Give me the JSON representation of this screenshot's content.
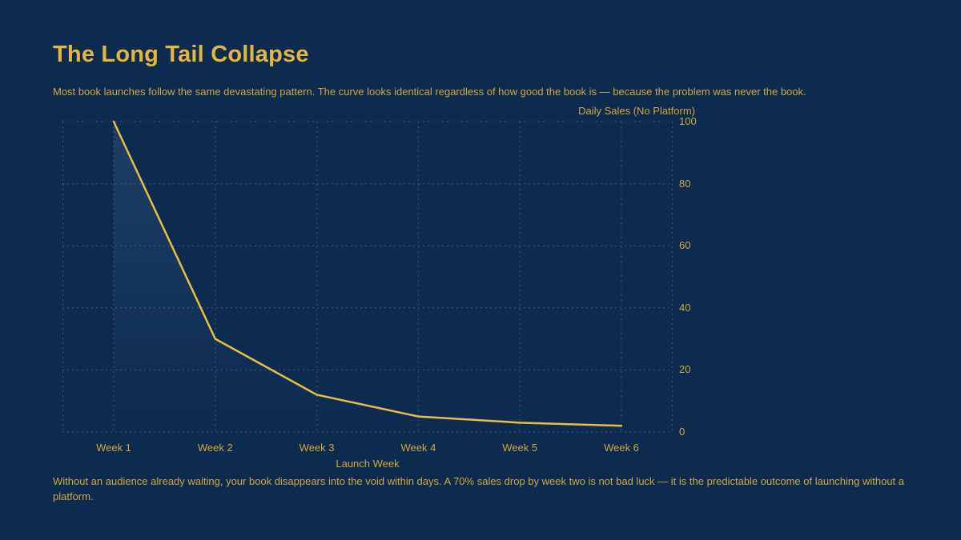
{
  "page": {
    "title": "The Long Tail Collapse",
    "subtitle": "Most book launches follow the same devastating pattern. The curve looks identical regardless of how good the book is — because the problem was never the book.",
    "footer": "Without an audience already waiting, your book disappears into the void within days. A 70% sales drop by week two is not bad luck — it is the predictable outcome of launching without a platform."
  },
  "chart_data": {
    "type": "line",
    "title": "The Long Tail Collapse",
    "categories": [
      "Week 1",
      "Week 2",
      "Week 3",
      "Week 4",
      "Week 5",
      "Week 6"
    ],
    "values": [
      100,
      30,
      12,
      5,
      3,
      2
    ],
    "xlabel": "Launch Week",
    "ylabel": "Daily Sales (No Platform)",
    "ylim": [
      0,
      100
    ],
    "yticks": [
      0,
      20,
      40,
      60,
      80,
      100
    ],
    "grid": true,
    "grid_style": "dashed",
    "legend_position": "none",
    "line_color": "#e8bd49",
    "grid_color": "#5e7ba3",
    "area_fill_top": "rgba(90, 130, 180, 0.22)",
    "area_fill_bottom": "rgba(90, 130, 180, 0.0)"
  },
  "colors": {
    "background": "#0d2b4f",
    "title_gold": "#e5b63e",
    "text_gold": "#d2a63c",
    "line_gold": "#e8bd49"
  }
}
